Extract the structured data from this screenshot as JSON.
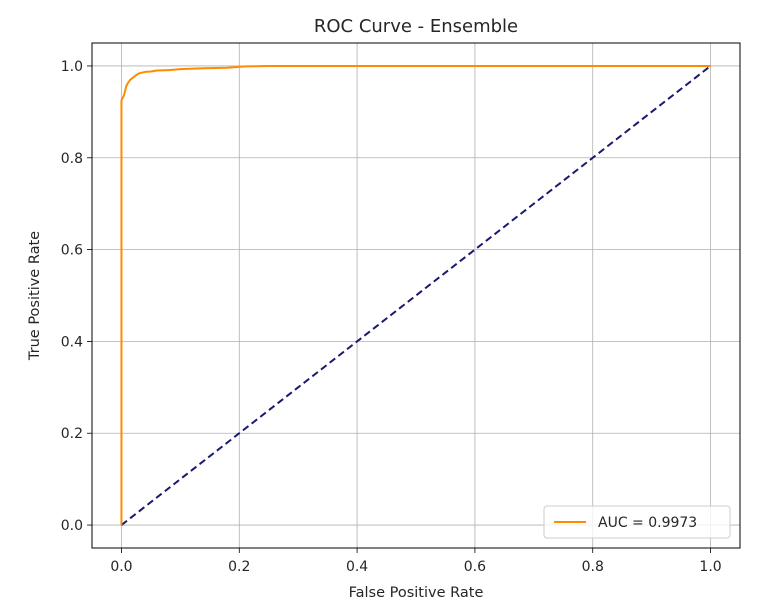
{
  "chart_data": {
    "type": "line",
    "title": "ROC Curve - Ensemble",
    "xlabel": "False Positive Rate",
    "ylabel": "True Positive Rate",
    "xlim": [
      -0.05,
      1.05
    ],
    "ylim": [
      -0.05,
      1.05
    ],
    "xticks": [
      0.0,
      0.2,
      0.4,
      0.6,
      0.8,
      1.0
    ],
    "yticks": [
      0.0,
      0.2,
      0.4,
      0.6,
      0.8,
      1.0
    ],
    "xtick_labels": [
      "0.0",
      "0.2",
      "0.4",
      "0.6",
      "0.8",
      "1.0"
    ],
    "ytick_labels": [
      "0.0",
      "0.2",
      "0.4",
      "0.6",
      "0.8",
      "1.0"
    ],
    "grid": true,
    "legend": {
      "placement": "lower-right",
      "entries": [
        "AUC = 0.9973"
      ]
    },
    "series": [
      {
        "name": "AUC = 0.9973",
        "color": "#ff8c00",
        "style": "solid",
        "x": [
          0.0,
          0.0,
          0.002,
          0.004,
          0.006,
          0.008,
          0.011,
          0.015,
          0.02,
          0.025,
          0.03,
          0.04,
          0.05,
          0.06,
          0.08,
          0.1,
          0.14,
          0.18,
          0.21,
          0.25,
          0.4,
          0.6,
          0.8,
          1.0
        ],
        "y": [
          0.0,
          0.925,
          0.93,
          0.935,
          0.945,
          0.955,
          0.963,
          0.97,
          0.975,
          0.98,
          0.984,
          0.987,
          0.988,
          0.99,
          0.991,
          0.993,
          0.995,
          0.996,
          0.999,
          1.0,
          1.0,
          1.0,
          1.0,
          1.0
        ]
      },
      {
        "name": "",
        "color": "#191970",
        "style": "dashed",
        "x": [
          0.0,
          1.0
        ],
        "y": [
          0.0,
          1.0
        ]
      }
    ]
  }
}
